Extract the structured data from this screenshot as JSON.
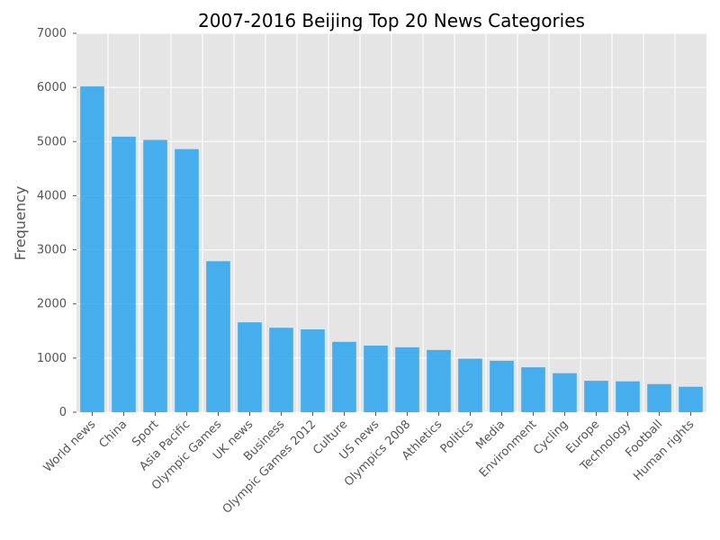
{
  "chart_data": {
    "type": "bar",
    "title": "2007-2016 Beijing Top 20 News Categories",
    "xlabel": "",
    "ylabel": "Frequency",
    "ylim": [
      0,
      7000
    ],
    "yticks": [
      0,
      1000,
      2000,
      3000,
      4000,
      5000,
      6000,
      7000
    ],
    "grid": true,
    "categories": [
      "World news",
      "China",
      "Sport",
      "Asia Pacific",
      "Olympic Games",
      "UK news",
      "Business",
      "Olympic Games 2012",
      "Culture",
      "US news",
      "Olympics 2008",
      "Athletics",
      "Politics",
      "Media",
      "Environment",
      "Cycling",
      "Europe",
      "Technology",
      "Football",
      "Human rights"
    ],
    "values": [
      6020,
      5090,
      5030,
      4860,
      2790,
      1660,
      1560,
      1530,
      1300,
      1230,
      1200,
      1150,
      990,
      950,
      830,
      720,
      580,
      570,
      520,
      470
    ]
  },
  "colors": {
    "bar": "#1ea0ed",
    "plot_background": "#e5e5e5",
    "grid": "#ffffff"
  }
}
